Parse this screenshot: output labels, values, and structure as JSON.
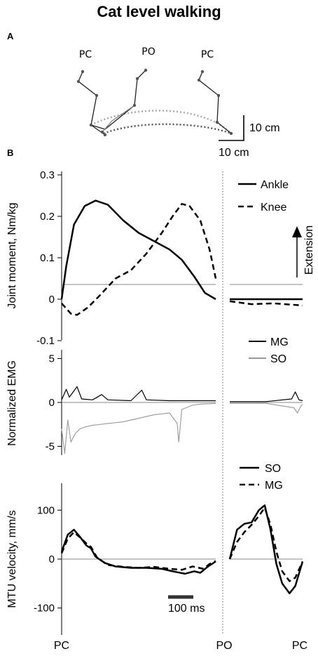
{
  "title": "Cat level walking",
  "panel_a_label": "A",
  "panel_b_label": "B",
  "stick_figure": {
    "labels": [
      "PC",
      "PO",
      "PC"
    ],
    "scale_vertical": "10 cm",
    "scale_horizontal": "10 cm"
  },
  "events": {
    "left": "PC",
    "middle": "PO",
    "right": "PC"
  },
  "scale_bar_time": "100 ms",
  "extension_label": "Extension",
  "chart_data": [
    {
      "type": "line",
      "ylabel": "Joint moment, Nm/kg",
      "ylim": [
        -0.1,
        0.3
      ],
      "yticks": [
        "0.3",
        "0.2",
        "0.1",
        "0",
        "-0.1"
      ],
      "ytick_values": [
        0.3,
        0.2,
        0.1,
        0,
        -0.1
      ],
      "legend": [
        "Ankle",
        "Knee"
      ],
      "series": [
        {
          "name": "Ankle",
          "style": "solid",
          "stance": [
            [
              0,
              0
            ],
            [
              0.03,
              0.08
            ],
            [
              0.08,
              0.18
            ],
            [
              0.15,
              0.225
            ],
            [
              0.22,
              0.238
            ],
            [
              0.3,
              0.228
            ],
            [
              0.4,
              0.19
            ],
            [
              0.5,
              0.16
            ],
            [
              0.6,
              0.14
            ],
            [
              0.7,
              0.12
            ],
            [
              0.78,
              0.095
            ],
            [
              0.86,
              0.055
            ],
            [
              0.93,
              0.015
            ],
            [
              1,
              0
            ]
          ],
          "swing": [
            [
              0,
              0
            ],
            [
              0.5,
              0
            ],
            [
              1,
              0
            ]
          ]
        },
        {
          "name": "Knee",
          "style": "dashed",
          "stance": [
            [
              0,
              -0.01
            ],
            [
              0.06,
              -0.035
            ],
            [
              0.1,
              -0.038
            ],
            [
              0.17,
              -0.02
            ],
            [
              0.25,
              0.01
            ],
            [
              0.35,
              0.05
            ],
            [
              0.45,
              0.07
            ],
            [
              0.55,
              0.11
            ],
            [
              0.65,
              0.16
            ],
            [
              0.72,
              0.2
            ],
            [
              0.78,
              0.23
            ],
            [
              0.83,
              0.225
            ],
            [
              0.9,
              0.19
            ],
            [
              0.96,
              0.12
            ],
            [
              1,
              0.05
            ]
          ],
          "swing": [
            [
              0,
              -0.005
            ],
            [
              0.3,
              -0.012
            ],
            [
              0.6,
              -0.01
            ],
            [
              1,
              -0.015
            ]
          ]
        }
      ]
    },
    {
      "type": "line",
      "ylabel": "Normalized EMG",
      "ylim": [
        -6,
        6
      ],
      "yticks": [
        "5",
        "0",
        "-5"
      ],
      "ytick_values": [
        5,
        0,
        -5
      ],
      "legend": [
        "MG",
        "SO"
      ],
      "series": [
        {
          "name": "MG",
          "color": "#000000",
          "sign": 1,
          "stance": [
            [
              0,
              0.3
            ],
            [
              0.03,
              1.5
            ],
            [
              0.05,
              0.6
            ],
            [
              0.1,
              1.8
            ],
            [
              0.13,
              0.4
            ],
            [
              0.2,
              0.3
            ],
            [
              0.26,
              0.9
            ],
            [
              0.3,
              0.3
            ],
            [
              0.45,
              0.2
            ],
            [
              0.52,
              1.4
            ],
            [
              0.55,
              0.3
            ],
            [
              0.7,
              0.2
            ],
            [
              0.85,
              0.2
            ],
            [
              1,
              0.2
            ]
          ],
          "swing": [
            [
              0,
              0.1
            ],
            [
              0.5,
              0.1
            ],
            [
              0.85,
              0.4
            ],
            [
              0.9,
              1.2
            ],
            [
              0.95,
              0.3
            ],
            [
              1,
              0.2
            ]
          ]
        },
        {
          "name": "SO",
          "color": "#a0a0a0",
          "sign": -1,
          "stance": [
            [
              0,
              3
            ],
            [
              0.02,
              5.8
            ],
            [
              0.04,
              2
            ],
            [
              0.06,
              4.5
            ],
            [
              0.09,
              3.5
            ],
            [
              0.12,
              3
            ],
            [
              0.15,
              2.8
            ],
            [
              0.2,
              2.6
            ],
            [
              0.25,
              2.5
            ],
            [
              0.3,
              2.4
            ],
            [
              0.35,
              2.3
            ],
            [
              0.4,
              2.2
            ],
            [
              0.45,
              2
            ],
            [
              0.5,
              1.8
            ],
            [
              0.55,
              1.6
            ],
            [
              0.6,
              1.4
            ],
            [
              0.65,
              1.3
            ],
            [
              0.7,
              1.2
            ],
            [
              0.75,
              2.4
            ],
            [
              0.76,
              4.5
            ],
            [
              0.78,
              0.8
            ],
            [
              0.85,
              0.3
            ],
            [
              0.9,
              0.2
            ],
            [
              1,
              0.1
            ]
          ],
          "swing": [
            [
              0,
              0.1
            ],
            [
              0.5,
              0.1
            ],
            [
              0.88,
              0.6
            ],
            [
              0.93,
              1.2
            ],
            [
              0.97,
              0.5
            ],
            [
              1,
              0.2
            ]
          ]
        }
      ]
    },
    {
      "type": "line",
      "ylabel": "MTU velocity, mm/s",
      "ylim": [
        -155,
        155
      ],
      "yticks": [
        "100",
        "0",
        "-100"
      ],
      "ytick_values": [
        100,
        0,
        -100
      ],
      "legend": [
        "SO",
        "MG"
      ],
      "series": [
        {
          "name": "SO",
          "style": "solid",
          "stance": [
            [
              0,
              15
            ],
            [
              0.04,
              50
            ],
            [
              0.08,
              60
            ],
            [
              0.12,
              45
            ],
            [
              0.16,
              28
            ],
            [
              0.19,
              22
            ],
            [
              0.22,
              5
            ],
            [
              0.28,
              -8
            ],
            [
              0.35,
              -15
            ],
            [
              0.45,
              -18
            ],
            [
              0.55,
              -18
            ],
            [
              0.65,
              -20
            ],
            [
              0.72,
              -25
            ],
            [
              0.8,
              -30
            ],
            [
              0.86,
              -25
            ],
            [
              0.9,
              -28
            ],
            [
              0.95,
              -15
            ],
            [
              1,
              -5
            ]
          ],
          "swing": [
            [
              0,
              0
            ],
            [
              0.1,
              60
            ],
            [
              0.2,
              72
            ],
            [
              0.3,
              75
            ],
            [
              0.4,
              100
            ],
            [
              0.48,
              110
            ],
            [
              0.56,
              60
            ],
            [
              0.64,
              -10
            ],
            [
              0.72,
              -50
            ],
            [
              0.82,
              -70
            ],
            [
              0.9,
              -55
            ],
            [
              1,
              -5
            ]
          ]
        },
        {
          "name": "MG",
          "style": "dashed",
          "stance": [
            [
              0,
              12
            ],
            [
              0.04,
              42
            ],
            [
              0.08,
              55
            ],
            [
              0.12,
              44
            ],
            [
              0.16,
              32
            ],
            [
              0.19,
              25
            ],
            [
              0.23,
              3
            ],
            [
              0.3,
              -12
            ],
            [
              0.4,
              -16
            ],
            [
              0.5,
              -18
            ],
            [
              0.6,
              -16
            ],
            [
              0.7,
              -20
            ],
            [
              0.78,
              -22
            ],
            [
              0.85,
              -15
            ],
            [
              0.92,
              -20
            ],
            [
              0.96,
              -10
            ],
            [
              1,
              -4
            ]
          ],
          "swing": [
            [
              0,
              0
            ],
            [
              0.1,
              35
            ],
            [
              0.2,
              55
            ],
            [
              0.3,
              70
            ],
            [
              0.4,
              88
            ],
            [
              0.48,
              105
            ],
            [
              0.56,
              70
            ],
            [
              0.64,
              15
            ],
            [
              0.72,
              -25
            ],
            [
              0.82,
              -45
            ],
            [
              0.9,
              -38
            ],
            [
              1,
              -5
            ]
          ]
        }
      ]
    }
  ]
}
